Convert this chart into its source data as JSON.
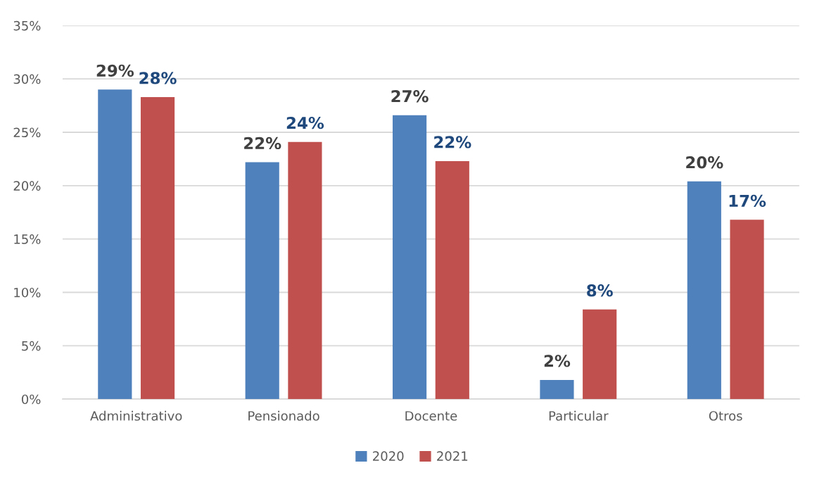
{
  "chart_data": {
    "type": "bar",
    "categories": [
      "Administrativo",
      "Pensionado",
      "Docente",
      "Particular",
      "Otros"
    ],
    "series": [
      {
        "name": "2020",
        "color": "#4f81bd",
        "values": [
          29.0,
          22.2,
          26.6,
          1.8,
          20.4
        ],
        "value_labels": [
          "29%",
          "22%",
          "27%",
          "2%",
          "20%"
        ]
      },
      {
        "name": "2021",
        "color": "#c0504d",
        "values": [
          28.3,
          24.1,
          22.3,
          8.4,
          16.8
        ],
        "value_labels": [
          "28%",
          "24%",
          "22%",
          "8%",
          "17%"
        ]
      }
    ],
    "ylim": [
      0,
      35
    ],
    "yticks": [
      {
        "value": 0,
        "label": "0%"
      },
      {
        "value": 5,
        "label": "5%"
      },
      {
        "value": 10,
        "label": "10%"
      },
      {
        "value": 15,
        "label": "15%"
      },
      {
        "value": 20,
        "label": "20%"
      },
      {
        "value": 25,
        "label": "25%"
      },
      {
        "value": 30,
        "label": "30%"
      },
      {
        "value": 35,
        "label": "35%"
      }
    ],
    "grid": "y",
    "legend": "bottom"
  }
}
